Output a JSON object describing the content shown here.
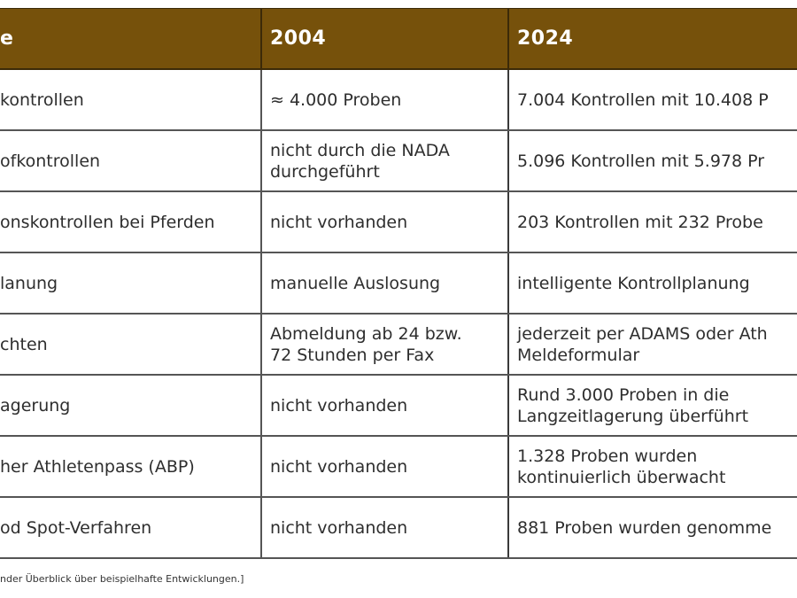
{
  "table": {
    "header": {
      "col1": "e",
      "col2": "2004",
      "col3": "2024"
    },
    "rows": [
      {
        "col1": "kontrollen",
        "col2": "≈ 4.000 Proben",
        "col3": "7.004 Kontrollen mit 10.408 P"
      },
      {
        "col1": "ofkontrollen",
        "col2": "nicht durch die NADA\ndurchgeführt",
        "col3": "5.096 Kontrollen mit 5.978 Pr"
      },
      {
        "col1": "onskontrollen bei Pferden",
        "col2": "nicht vorhanden",
        "col3": "203 Kontrollen mit 232 Probe"
      },
      {
        "col1": "lanung",
        "col2": "manuelle Auslosung",
        "col3": "intelligente Kontrollplanung"
      },
      {
        "col1": "chten",
        "col2": "Abmeldung ab 24 bzw.\n72 Stunden per Fax",
        "col3": "jederzeit per ADAMS oder Ath\nMeldeformular"
      },
      {
        "col1": "agerung",
        "col2": "nicht vorhanden",
        "col3": "Rund 3.000 Proben in die\nLangzeitlagerung überführt"
      },
      {
        "col1": "her Athletenpass (ABP)",
        "col2": "nicht vorhanden",
        "col3": "1.328 Proben wurden\nkontinuierlich überwacht"
      },
      {
        "col1": "od Spot-Verfahren",
        "col2": "nicht vorhanden",
        "col3": "881 Proben wurden genomme"
      }
    ]
  },
  "footnote": "nder Überblick über beispielhafte Entwicklungen.]",
  "colors": {
    "header_bg": "#76510b",
    "header_text": "#ffffff",
    "body_text": "#2e2e2e",
    "grid_line": "#555555"
  }
}
